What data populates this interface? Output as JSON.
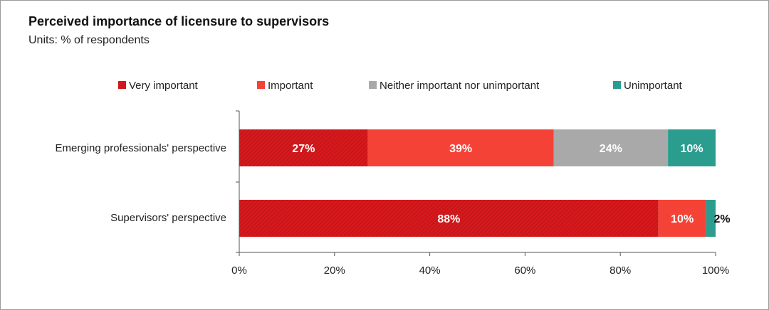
{
  "chart_data": {
    "type": "bar",
    "orientation": "horizontal",
    "stacked": true,
    "title": "Perceived importance of licensure to supervisors",
    "subtitle": "Units: % of respondents",
    "categories": [
      "Emerging professionals' perspective",
      "Supervisors' perspective"
    ],
    "series": [
      {
        "name": "Very important",
        "values": [
          27,
          88
        ],
        "color": "#d7191c",
        "pattern": "hatched"
      },
      {
        "name": "Important",
        "values": [
          39,
          10
        ],
        "color": "#f44336"
      },
      {
        "name": "Neither important nor unimportant",
        "values": [
          24,
          0
        ],
        "color": "#a9a9a9"
      },
      {
        "name": "Unimportant",
        "values": [
          10,
          2
        ],
        "color": "#2a9d8f"
      }
    ],
    "data_labels": [
      [
        "27%",
        "39%",
        "24%",
        "10%"
      ],
      [
        "88%",
        "10%",
        "",
        "2%"
      ]
    ],
    "xlim": [
      0,
      100
    ],
    "xticks": [
      "0%",
      "20%",
      "40%",
      "60%",
      "80%",
      "100%"
    ],
    "legend_position": "top",
    "grid": false
  }
}
